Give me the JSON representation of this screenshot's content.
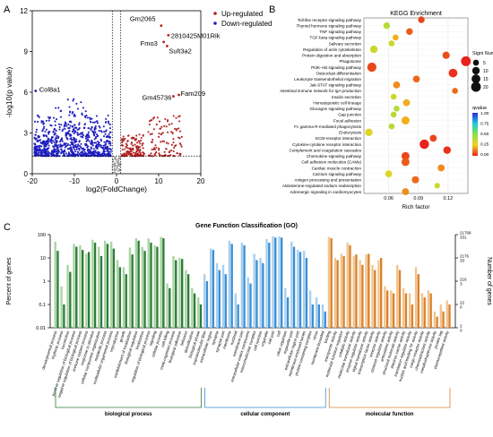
{
  "panel_labels": {
    "a": "A",
    "b": "B",
    "c": "C"
  },
  "chart_data": [
    {
      "type": "scatter",
      "panel": "A",
      "xlabel": "log2(FoldChange)",
      "ylabel": "-log10(p value)",
      "xlim": [
        -20,
        20
      ],
      "ylim": [
        0,
        12
      ],
      "xticks": [
        -20,
        -10,
        0,
        10,
        20
      ],
      "yticks": [
        0,
        3,
        6,
        9,
        12
      ],
      "legend": [
        {
          "name": "Up-regulated",
          "color": "#b22222"
        },
        {
          "name": "Down-regulated",
          "color": "#1f1fbf"
        }
      ],
      "threshold_y": 1.3,
      "threshold_x": [
        -1,
        1
      ],
      "labeled_points": [
        {
          "label": "Col8a1",
          "x": -19.2,
          "y": 6.1,
          "series": "Down-regulated"
        },
        {
          "label": "Gm2065",
          "x": 10.6,
          "y": 10.9,
          "series": "Up-regulated"
        },
        {
          "label": "2810425M01Rik",
          "x": 12.3,
          "y": 10.2,
          "series": "Up-regulated"
        },
        {
          "label": "Fmo3",
          "x": 11.2,
          "y": 9.7,
          "series": "Up-regulated"
        },
        {
          "label": "Sult3a2",
          "x": 12.0,
          "y": 9.4,
          "series": "Up-regulated"
        },
        {
          "label": "Gm45736",
          "x": 13.5,
          "y": 5.7,
          "series": "Up-regulated"
        },
        {
          "label": "Fam209",
          "x": 14.8,
          "y": 5.8,
          "series": "Up-regulated"
        }
      ]
    },
    {
      "type": "scatter",
      "panel": "B",
      "title": "KEGG Enrichment",
      "xlabel": "Rich factor",
      "xlim": [
        0.035,
        0.14
      ],
      "xticks": [
        0.06,
        0.09,
        0.12
      ],
      "size_legend": {
        "title": "Signi Num",
        "values": [
          5,
          10,
          15,
          20
        ]
      },
      "color_legend": {
        "title": "qvalue",
        "ticks": [
          "1.00",
          "0.75",
          "0.50",
          "0.25",
          "0.00"
        ],
        "low_color": "#e8231c",
        "high_color": "#2a2ae0"
      },
      "pathways": [
        {
          "name": "Toll-like receptor signaling pathway",
          "rich": 0.093,
          "count": 7,
          "q": 0.05
        },
        {
          "name": "Thyroid hormone signaling pathway",
          "rich": 0.058,
          "count": 7,
          "q": 0.4
        },
        {
          "name": "TNF signaling pathway",
          "rich": 0.081,
          "count": 7,
          "q": 0.08
        },
        {
          "name": "TGF-beta signaling pathway",
          "rich": 0.067,
          "count": 5,
          "q": 0.2
        },
        {
          "name": "Salivary secretion",
          "rich": 0.063,
          "count": 5,
          "q": 0.35
        },
        {
          "name": "Regulation of actin cytoskeleton",
          "rich": 0.045,
          "count": 10,
          "q": 0.35
        },
        {
          "name": "Protein digestion and absorption",
          "rich": 0.118,
          "count": 9,
          "q": 0.06
        },
        {
          "name": "Phagosome",
          "rich": 0.138,
          "count": 20,
          "q": 0.0
        },
        {
          "name": "PI3K-Akt signaling pathway",
          "rich": 0.043,
          "count": 17,
          "q": 0.05
        },
        {
          "name": "Osteoclast differentiation",
          "rich": 0.125,
          "count": 15,
          "q": 0.02
        },
        {
          "name": "Leukocyte transendothelial migration",
          "rich": 0.088,
          "count": 8,
          "q": 0.1
        },
        {
          "name": "Jak-STAT signaling pathway",
          "rich": 0.068,
          "count": 8,
          "q": 0.15
        },
        {
          "name": "Intestinal immune network for IgA production",
          "rich": 0.127,
          "count": 5,
          "q": 0.1
        },
        {
          "name": "Insulin secretion",
          "rich": 0.065,
          "count": 5,
          "q": 0.35
        },
        {
          "name": "Hematopoietic cell lineage",
          "rich": 0.078,
          "count": 8,
          "q": 0.2
        },
        {
          "name": "Glucagon signaling pathway",
          "rich": 0.068,
          "count": 5,
          "q": 0.4
        },
        {
          "name": "Gap junction",
          "rich": 0.065,
          "count": 5,
          "q": 0.4
        },
        {
          "name": "Focal adhesion",
          "rich": 0.077,
          "count": 12,
          "q": 0.2
        },
        {
          "name": "Fc gamma R-mediated phagocytosis",
          "rich": 0.063,
          "count": 5,
          "q": 0.4
        },
        {
          "name": "Endocytosis",
          "rich": 0.04,
          "count": 10,
          "q": 0.3
        },
        {
          "name": "ECM-receptor interaction",
          "rich": 0.105,
          "count": 8,
          "q": 0.05
        },
        {
          "name": "Cytokine-cytokine receptor interaction",
          "rich": 0.096,
          "count": 18,
          "q": 0.0
        },
        {
          "name": "Complement and coagulation cascades",
          "rich": 0.119,
          "count": 10,
          "q": 0.02
        },
        {
          "name": "Chemokine signaling pathway",
          "rich": 0.077,
          "count": 12,
          "q": 0.05
        },
        {
          "name": "Cell adhesion molecules (CAMs)",
          "rich": 0.077,
          "count": 12,
          "q": 0.08
        },
        {
          "name": "Cardiac muscle contraction",
          "rich": 0.113,
          "count": 8,
          "q": 0.15
        },
        {
          "name": "Calcium signaling pathway",
          "rich": 0.06,
          "count": 8,
          "q": 0.3
        },
        {
          "name": "Antigen processing and presentation",
          "rich": 0.087,
          "count": 9,
          "q": 0.1
        },
        {
          "name": "Aldosterone-regulated sodium reabsorption",
          "rich": 0.109,
          "count": 4,
          "q": 0.35
        },
        {
          "name": "Adrenergic signaling in cardiomyocytes",
          "rich": 0.077,
          "count": 8,
          "q": 0.15
        }
      ]
    },
    {
      "type": "bar",
      "panel": "C",
      "title": "Gene Function Classification (GO)",
      "ylabel": "Percent of genes",
      "ylabel_right": "Number of genes",
      "ylim": [
        0.01,
        100
      ],
      "log_scale": true,
      "yticks_left": [
        "100",
        "10",
        "1",
        "0.1",
        "0.01"
      ],
      "yticks_right": [
        {
          "value": "21768",
          "sub": "331"
        },
        {
          "value": "2176",
          "sub": "33"
        },
        {
          "value": "216",
          "sub": "3"
        },
        {
          "value": "22",
          "sub": "0"
        },
        {
          "value": "2",
          "sub": "0"
        }
      ],
      "groups": [
        {
          "name": "biological process",
          "color_dark": "#2e7d3a",
          "color_light": "#a8d5a0",
          "categories": [
            {
              "label": "developmental process",
              "light": 50,
              "dark": 20
            },
            {
              "label": "rhythmic process",
              "light": 0.6,
              "dark": 0.1
            },
            {
              "label": "locomotion",
              "light": 5,
              "dark": 2.5
            },
            {
              "label": "positive regulation of biological process",
              "light": 40,
              "dark": 30
            },
            {
              "label": "negative regulation of biological process",
              "light": 35,
              "dark": 22
            },
            {
              "label": "immune system process",
              "light": 15,
              "dark": 18
            },
            {
              "label": "response to stimulus",
              "light": 60,
              "dark": 45
            },
            {
              "label": "cellular component organization",
              "light": 30,
              "dark": 12
            },
            {
              "label": "metabolic process",
              "light": 55,
              "dark": 40
            },
            {
              "label": "multicellular organismal process",
              "light": 50,
              "dark": 25
            },
            {
              "label": "reproduction",
              "light": 8,
              "dark": 4
            },
            {
              "label": "growth",
              "light": 4,
              "dark": 2
            },
            {
              "label": "establishment of localization",
              "light": 28,
              "dark": 14
            },
            {
              "label": "biological regulation",
              "light": 70,
              "dark": 55
            },
            {
              "label": "localization",
              "light": 30,
              "dark": 20
            },
            {
              "label": "regulation of biological process",
              "light": 68,
              "dark": 45
            },
            {
              "label": "signaling",
              "light": 35,
              "dark": 30
            },
            {
              "label": "cellular process",
              "light": 80,
              "dark": 70
            },
            {
              "label": "cell killing",
              "light": 0.8,
              "dark": 0.5
            },
            {
              "label": "multi-organism process",
              "light": 12,
              "dark": 8
            },
            {
              "label": "biological adhesion",
              "light": 10,
              "dark": 9
            },
            {
              "label": "behavior",
              "light": 3,
              "dark": 2
            },
            {
              "label": "detoxification",
              "light": 0.5,
              "dark": 0.3
            },
            {
              "label": "biological phase",
              "light": 0.2,
              "dark": 0.1
            }
          ]
        },
        {
          "name": "cellular component",
          "color_dark": "#3b8fd4",
          "color_light": "#a9cfee",
          "categories": [
            {
              "label": "supramolecular fiber",
              "light": 2,
              "dark": 1
            },
            {
              "label": "extracellular region",
              "light": 25,
              "dark": 22
            },
            {
              "label": "synapse",
              "light": 6,
              "dark": 3
            },
            {
              "label": "synapse part",
              "light": 5,
              "dark": 2
            },
            {
              "label": "membrane",
              "light": 55,
              "dark": 40
            },
            {
              "label": "nucleoid",
              "light": 0.3,
              "dark": 0.1
            },
            {
              "label": "membrane part",
              "light": 45,
              "dark": 35
            },
            {
              "label": "extracellular matrix component",
              "light": 1.5,
              "dark": 0.8
            },
            {
              "label": "macromolecular complex",
              "light": 15,
              "dark": 8
            },
            {
              "label": "cell junction",
              "light": 10,
              "dark": 6
            },
            {
              "label": "organelle",
              "light": 65,
              "dark": 45
            },
            {
              "label": "cell part",
              "light": 85,
              "dark": 75
            },
            {
              "label": "cell",
              "light": 85,
              "dark": 75
            },
            {
              "label": "other organism",
              "light": 0.5,
              "dark": 0.2
            },
            {
              "label": "organelle part",
              "light": 50,
              "dark": 30
            },
            {
              "label": "extracellular region part",
              "light": 22,
              "dark": 18
            },
            {
              "label": "membrane-enclosed lumen",
              "light": 20,
              "dark": 10
            },
            {
              "label": "protein-containing complex",
              "light": 0.4,
              "dark": 0.1
            },
            {
              "label": "virion",
              "light": 0.2,
              "dark": 0.1
            },
            {
              "label": "membrane-bounded",
              "light": 0.1,
              "dark": 0.05
            }
          ]
        },
        {
          "name": "molecular function",
          "color_dark": "#d9822b",
          "color_light": "#f2c48e",
          "categories": [
            {
              "label": "binding",
              "light": 80,
              "dark": 70
            },
            {
              "label": "transporter activity",
              "light": 10,
              "dark": 8
            },
            {
              "label": "molecular function regulator",
              "light": 15,
              "dark": 12
            },
            {
              "label": "catalytic activity",
              "light": 45,
              "dark": 35
            },
            {
              "label": "molecular transducer activity",
              "light": 12,
              "dark": 14
            },
            {
              "label": "enzyme regulator activity",
              "light": 8,
              "dark": 5
            },
            {
              "label": "signal transducer activity",
              "light": 14,
              "dark": 15
            },
            {
              "label": "transcription factor activity",
              "light": 5,
              "dark": 3
            },
            {
              "label": "receptor activity",
              "light": 8,
              "dark": 10
            },
            {
              "label": "channel regulator activity",
              "light": 0.6,
              "dark": 0.4
            },
            {
              "label": "antioxidant activity",
              "light": 0.4,
              "dark": 0.3
            },
            {
              "label": "structural molecule activity",
              "light": 5,
              "dark": 3
            },
            {
              "label": "electron carrier activity",
              "light": 0.5,
              "dark": 0.3
            },
            {
              "label": "translation regulator activity",
              "light": 0.3,
              "dark": 0.1
            },
            {
              "label": "nucleic acid binding TF activity",
              "light": 4,
              "dark": 2
            },
            {
              "label": "cargo receptor activity",
              "light": 0.3,
              "dark": 0.2
            },
            {
              "label": "chemoattractant activity",
              "light": 0.4,
              "dark": 0.3
            },
            {
              "label": "metallochaperone activity",
              "light": 0.05,
              "dark": 0.03
            },
            {
              "label": "protein tag",
              "light": 0.1,
              "dark": 0.05
            },
            {
              "label": "chemorepellent activity",
              "light": 0.15,
              "dark": 0.1
            }
          ]
        }
      ]
    }
  ]
}
